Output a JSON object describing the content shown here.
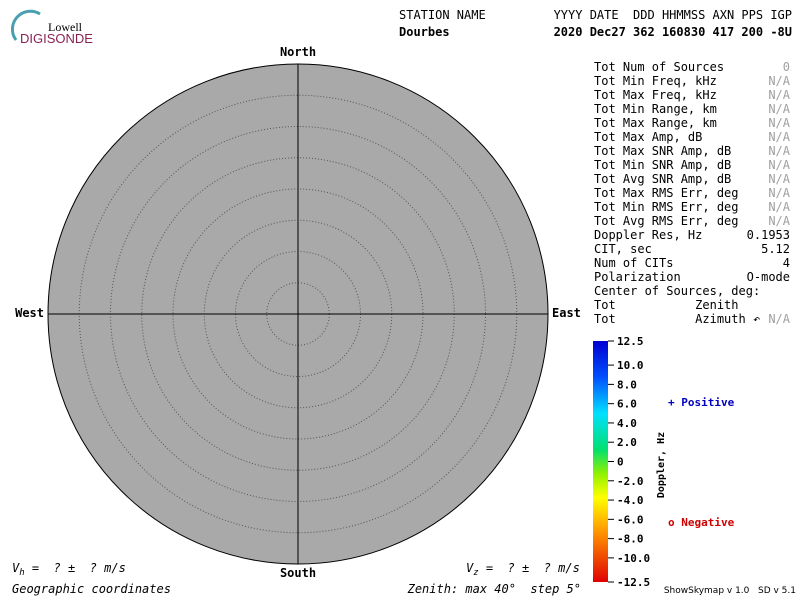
{
  "logo": {
    "line1": "Lowell",
    "line2": "DIGISONDE"
  },
  "header": {
    "title": "STATION NAME",
    "columns": "YYYY DATE  DDD HHMMSS AXN PPS IGP",
    "station": "Dourbes",
    "values": "2020 Dec27 362 160830 417 200 -8U"
  },
  "directions": {
    "north": "North",
    "south": "South",
    "east": "East",
    "west": "West"
  },
  "stats": [
    {
      "label": "Tot Num of Sources",
      "value": "0",
      "muted": true
    },
    {
      "label": "Tot Min Freq, kHz",
      "value": "N/A",
      "muted": true
    },
    {
      "label": "Tot Max Freq, kHz",
      "value": "N/A",
      "muted": true
    },
    {
      "label": "Tot Min Range, km",
      "value": "N/A",
      "muted": true
    },
    {
      "label": "Tot Max Range, km",
      "value": "N/A",
      "muted": true
    },
    {
      "label": "Tot Max Amp, dB",
      "value": "N/A",
      "muted": true
    },
    {
      "label": "Tot Max SNR Amp, dB",
      "value": "N/A",
      "muted": true
    },
    {
      "label": "Tot Min SNR Amp, dB",
      "value": "N/A",
      "muted": true
    },
    {
      "label": "Tot Avg SNR Amp, dB",
      "value": "N/A",
      "muted": true
    },
    {
      "label": "Tot Max RMS Err, deg",
      "value": "N/A",
      "muted": true
    },
    {
      "label": "Tot Min RMS Err, deg",
      "value": "N/A",
      "muted": true
    },
    {
      "label": "Tot Avg RMS Err, deg",
      "value": "N/A",
      "muted": true
    },
    {
      "label": "Doppler Res, Hz",
      "value": "0.1953",
      "muted": false
    },
    {
      "label": "CIT, sec",
      "value": "5.12",
      "muted": false
    },
    {
      "label": "Num of CITs",
      "value": "4",
      "muted": false
    },
    {
      "label": "Polarization",
      "value": "O-mode",
      "muted": false
    },
    {
      "label": "Center of Sources, deg:",
      "muted": false
    },
    {
      "label": "Tot           Zenith",
      "muted": false
    },
    {
      "label": "Tot           Azimuth ↶",
      "value": "N/A",
      "muted": true
    }
  ],
  "colorbar": {
    "title": "Doppler, Hz",
    "lim": [
      -12.5,
      12.5
    ],
    "ticks": [
      12.5,
      {
        "value": 10,
        "label": "10.0"
      },
      {
        "value": 8,
        "label": "8.0"
      },
      {
        "value": 6,
        "label": "6.0"
      },
      {
        "value": 4,
        "label": "4.0"
      },
      {
        "value": 2,
        "label": "2.0"
      },
      0,
      {
        "value": -2,
        "label": "-2.0"
      },
      {
        "value": -4,
        "label": "-4.0"
      },
      {
        "value": -6,
        "label": "-6.0"
      },
      {
        "value": -8,
        "label": "-8.0"
      },
      {
        "value": -10,
        "label": "-10.0"
      },
      -12.5
    ],
    "positive": "+ Positive",
    "negative": "o Negative"
  },
  "velocity": {
    "vh": "V",
    "vh_sub": "h",
    "vh_rest": " =  ? ±  ? m/s",
    "vz": "V",
    "vz_sub": "z",
    "vz_rest": " =  ? ±  ? m/s"
  },
  "footer": {
    "coords": "Geographic coordinates",
    "zenith": "Zenith: max 40°  step 5°",
    "version": "ShowSkymap v 1.0   SD v 5.1"
  }
}
